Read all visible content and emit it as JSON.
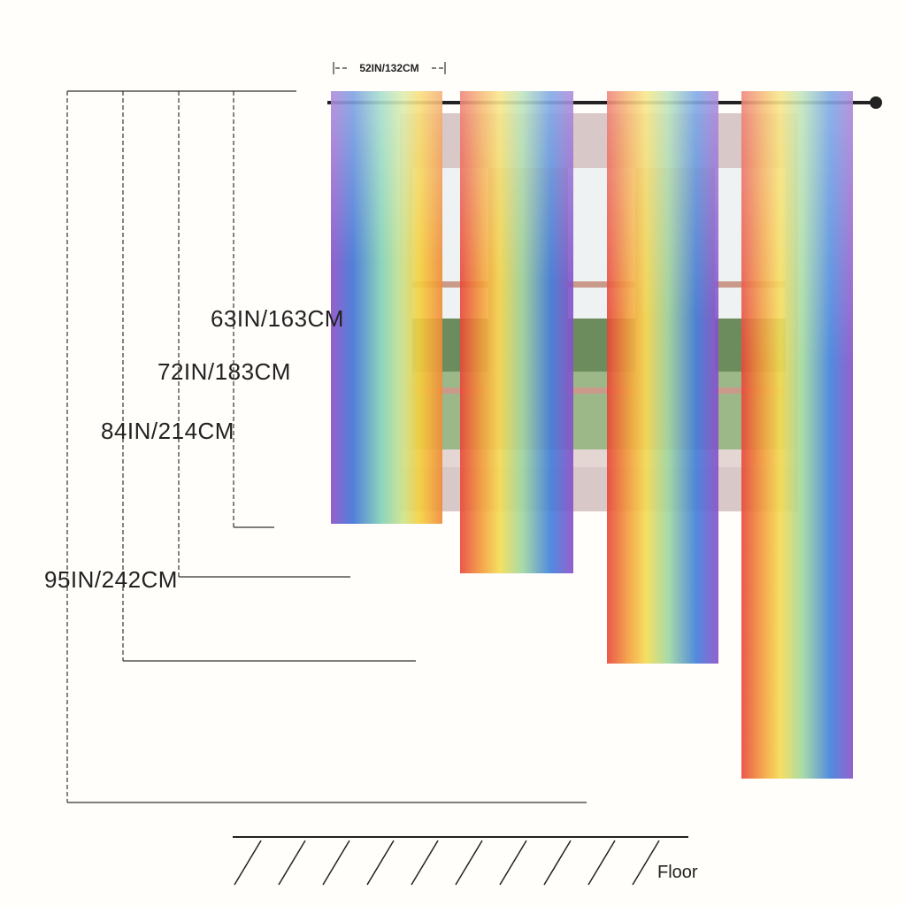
{
  "width_label": "52IN/132CM",
  "lengths": [
    "63IN/163CM",
    "72IN/183CM",
    "84IN/214CM",
    "95IN/242CM"
  ],
  "floor_label": "Floor"
}
